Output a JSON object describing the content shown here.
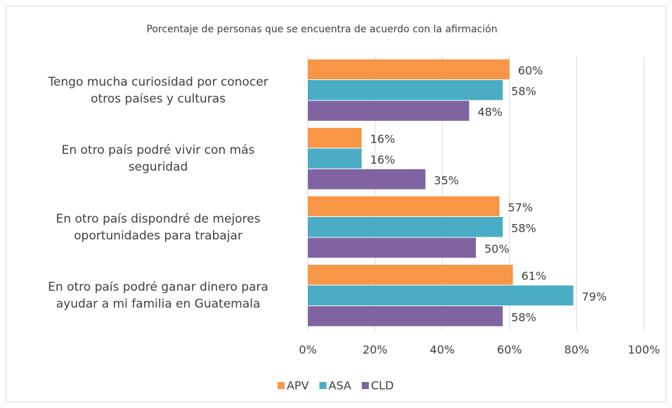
{
  "chart_data": {
    "type": "hbar",
    "title": "Porcentaje de personas que se encuentra de acuerdo con la afirmación",
    "categories": [
      "Tengo mucha curiosidad por conocer\notros países y culturas",
      "En otro país podré vivir con más\nseguridad",
      "En otro país dispondré de mejores\noportunidades para trabajar",
      "En otro país podré ganar dinero para\nayudar a mi familia en Guatemala"
    ],
    "series": [
      {
        "name": "APV",
        "color": "#f79646",
        "values": [
          60,
          16,
          57,
          61
        ],
        "value_labels": [
          "60%",
          "16%",
          "57%",
          "61%"
        ]
      },
      {
        "name": "ASA",
        "color": "#4bacc6",
        "values": [
          58,
          16,
          58,
          79
        ],
        "value_labels": [
          "58%",
          "16%",
          "58%",
          "79%"
        ]
      },
      {
        "name": "CLD",
        "color": "#8064a2",
        "values": [
          48,
          35,
          50,
          58
        ],
        "value_labels": [
          "48%",
          "35%",
          "50%",
          "58%"
        ]
      }
    ],
    "xlim": [
      0,
      100
    ],
    "xticks": [
      {
        "value": 0,
        "label": "0%"
      },
      {
        "value": 20,
        "label": "20%"
      },
      {
        "value": 40,
        "label": "40%"
      },
      {
        "value": 60,
        "label": "60%"
      },
      {
        "value": 80,
        "label": "80%"
      },
      {
        "value": 100,
        "label": "100%"
      }
    ],
    "grid": true,
    "legend": "bottom"
  }
}
